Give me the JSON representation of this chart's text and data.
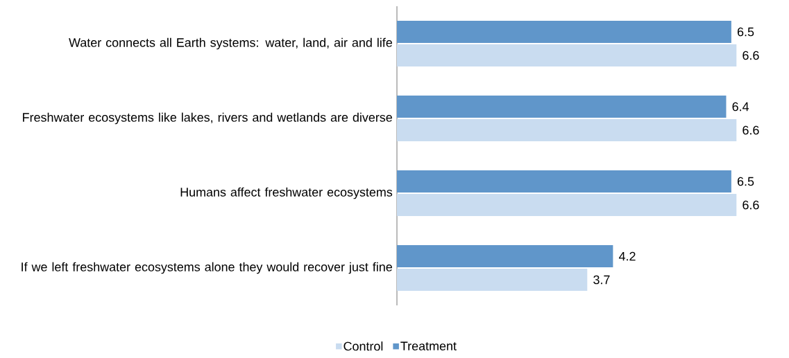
{
  "chart_data": {
    "type": "bar",
    "orientation": "horizontal",
    "categories": [
      "Water connects all Earth systems: water, land, air and life",
      "Freshwater ecosystems like lakes, rivers and wetlands are diverse",
      "Humans affect freshwater ecosystems",
      "If we left freshwater ecosystems alone they would recover just fine"
    ],
    "series": [
      {
        "name": "Control",
        "color": "#c9dcf0",
        "values": [
          6.6,
          6.6,
          6.6,
          3.7
        ]
      },
      {
        "name": "Treatment",
        "color": "#6096ca",
        "values": [
          6.5,
          6.4,
          6.5,
          4.2
        ]
      }
    ],
    "data_labels": true,
    "legend": "bottom"
  }
}
